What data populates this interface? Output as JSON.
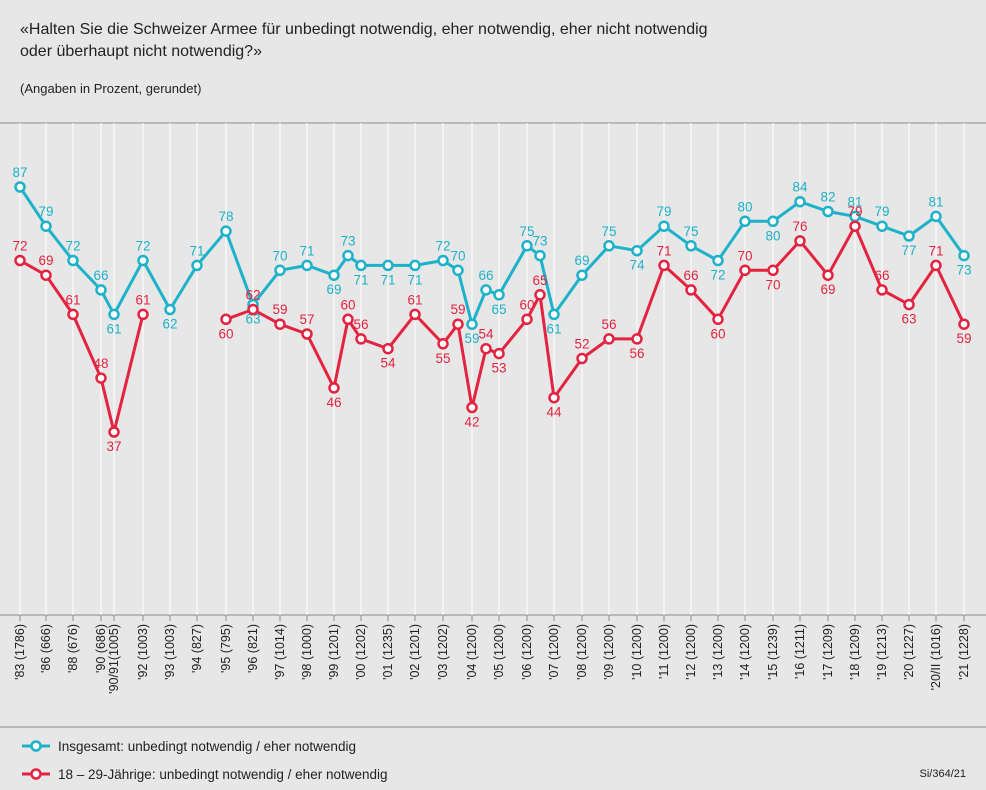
{
  "chart_data": {
    "type": "line",
    "title": [
      "«Halten Sie die Schweizer Armee für unbedingt notwendig, eher notwendig, eher nicht notwendig",
      "oder überhaupt nicht notwendig?»"
    ],
    "subtitle": "(Angaben in Prozent, gerundet)",
    "source": "Si/364/21",
    "categories": [
      "'83 (1786)",
      "'86 (666)",
      "'88 (676)",
      "'90 (686)",
      "'90/91(1005)",
      "'92 (1003)",
      "'93 (1003)",
      "'94 (827)",
      "'95 (795)",
      "'96 (821)",
      "'97 (1014)",
      "'98 (1000)",
      "'99 (1201)",
      null,
      "'00 (1202)",
      "'01 (1235)",
      "'02 (1201)",
      "'03 (1202)",
      null,
      "'04 (1200)",
      null,
      "'05 (1200)",
      "'06 (1200)",
      null,
      "'07 (1200)",
      "'08 (1200)",
      "'09 (1200)",
      "'10 (1200)",
      "'11 (1200)",
      "'12 (1200)",
      "'13 (1200)",
      "'14 (1200)",
      "'15 (1239)",
      "'16 (1211)",
      "'17 (1209)",
      "'18 (1209)",
      "'19 (1213)",
      "'20 (1227)",
      "'20/II (1016)",
      "'21 (1228)"
    ],
    "series": [
      {
        "name": "Insgesamt: unbedingt notwendig / eher notwendig",
        "color": "#1db2c9",
        "values": [
          87,
          79,
          72,
          66,
          61,
          72,
          62,
          71,
          78,
          63,
          70,
          71,
          69,
          73,
          71,
          71,
          71,
          72,
          70,
          59,
          66,
          65,
          75,
          73,
          61,
          69,
          75,
          74,
          79,
          75,
          72,
          80,
          80,
          84,
          82,
          81,
          79,
          77,
          81,
          73
        ]
      },
      {
        "name": "18 – 29-Jährige: unbedingt notwendig / eher notwendig",
        "color": "#e3233f",
        "values": [
          72,
          69,
          61,
          48,
          37,
          61,
          null,
          null,
          60,
          62,
          59,
          57,
          46,
          60,
          56,
          54,
          61,
          55,
          59,
          42,
          54,
          53,
          60,
          65,
          44,
          52,
          56,
          56,
          71,
          66,
          60,
          70,
          70,
          76,
          69,
          79,
          66,
          63,
          71,
          59
        ]
      }
    ]
  }
}
